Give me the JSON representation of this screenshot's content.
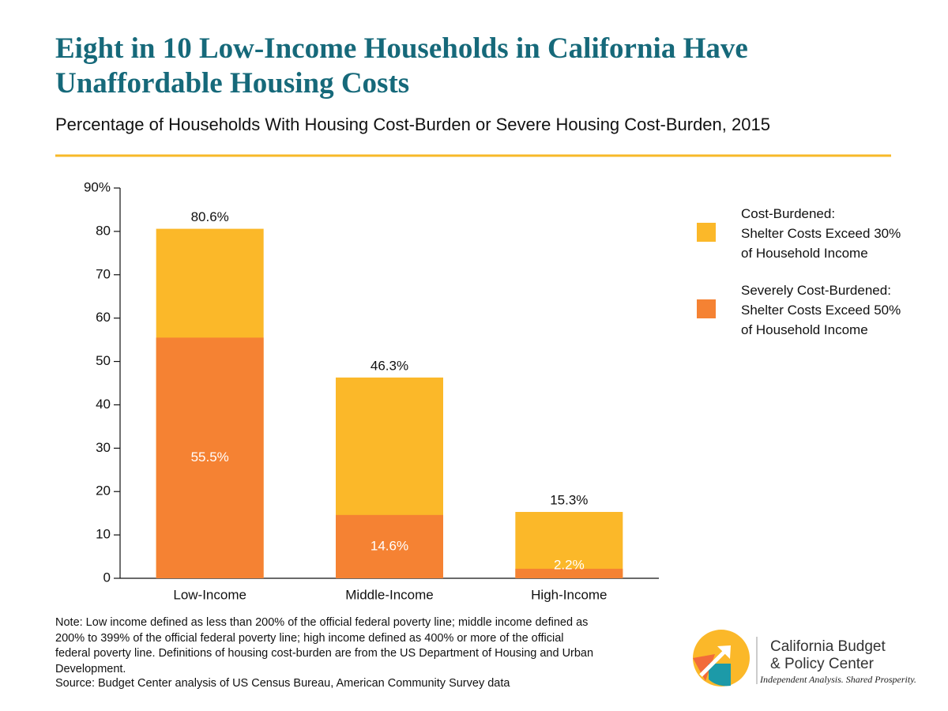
{
  "chart_data": {
    "type": "bar",
    "barmode": "overlay",
    "title": "Eight in 10 Low-Income Households in California Have Unaffordable Housing Costs",
    "subtitle": "Percentage of Households With Housing Cost-Burden or Severe Housing Cost-Burden, 2015",
    "categories": [
      "Low-Income",
      "Middle-Income",
      "High-Income"
    ],
    "series": [
      {
        "name": "Cost-Burdened:\nShelter Costs Exceed 30%\nof Household Income",
        "color": "#fbb829",
        "values": [
          80.6,
          46.3,
          15.3
        ],
        "value_labels": [
          "80.6%",
          "46.3%",
          "15.3%"
        ]
      },
      {
        "name": "Severely Cost-Burdened:\nShelter Costs Exceed 50%\nof Household Income",
        "color": "#f58233",
        "values": [
          55.5,
          14.6,
          2.2
        ],
        "value_labels": [
          "55.5%",
          "14.6%",
          "2.2%"
        ]
      }
    ],
    "ylim": [
      0,
      90
    ],
    "yticks": [
      0,
      10,
      20,
      30,
      40,
      50,
      60,
      70,
      80,
      {
        "value": 90,
        "label": "90%"
      }
    ],
    "legend": "right",
    "grid": false,
    "note": "Note: Low income defined as less than 200% of the official federal poverty line; middle income defined as 200% to 399% of the official federal poverty line; high income defined as 400% or more of the official federal poverty line. Definitions of housing cost-burden are from the US Department of Housing and Urban Development.",
    "source": "Source: Budget Center analysis of US Census Bureau, American Community Survey data"
  },
  "logo": {
    "name": "California Budget\n& Policy Center",
    "tagline": "Independent Analysis. Shared Prosperity."
  }
}
